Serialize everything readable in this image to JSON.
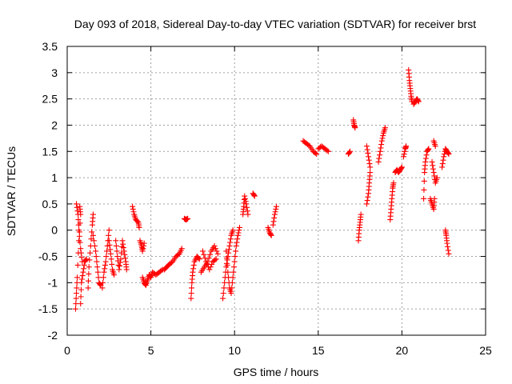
{
  "chart_data": {
    "type": "scatter",
    "title": "Day 093 of 2018, Sidereal Day-to-day VTEC variation (SDTVAR) for receiver brst",
    "xlabel": "GPS time / hours",
    "ylabel": "SDTVAR / TECUs",
    "xlim": [
      0,
      25
    ],
    "ylim": [
      -2,
      3.5
    ],
    "x_ticks": [
      0,
      5,
      10,
      15,
      20,
      25
    ],
    "x_tick_labels": [
      "0",
      "5",
      "10",
      "15",
      "20",
      "25"
    ],
    "y_ticks": [
      -2,
      -1.5,
      -1,
      -0.5,
      0,
      0.5,
      1,
      1.5,
      2,
      2.5,
      3,
      3.5
    ],
    "y_tick_labels": [
      "-2",
      "-1.5",
      "-1",
      "-0.5",
      "0",
      "0.5",
      "1",
      "1.5",
      "2",
      "2.5",
      "3",
      "3.5"
    ],
    "grid": true,
    "marker": "plus",
    "color": "#ff0000",
    "series": [
      {
        "name": "SDTVAR",
        "segments": [
          [
            [
              0.5,
              -1.5
            ],
            [
              0.55,
              -1.2
            ],
            [
              0.6,
              -0.9
            ],
            [
              0.7,
              -0.2
            ],
            [
              0.8,
              0.3
            ],
            [
              0.75,
              0.45
            ]
          ],
          [
            [
              0.55,
              0.5
            ],
            [
              0.65,
              0.3
            ],
            [
              0.7,
              0.0
            ],
            [
              0.8,
              -0.35
            ],
            [
              0.9,
              -0.6
            ]
          ],
          [
            [
              0.8,
              -1.4
            ],
            [
              0.85,
              -1.0
            ],
            [
              0.95,
              -0.8
            ],
            [
              1.05,
              -0.6
            ],
            [
              1.15,
              -0.55
            ]
          ],
          [
            [
              1.25,
              -1.1
            ],
            [
              1.3,
              -0.7
            ],
            [
              1.4,
              -0.3
            ],
            [
              1.5,
              0.1
            ],
            [
              1.55,
              0.3
            ]
          ],
          [
            [
              1.55,
              -0.1
            ],
            [
              1.7,
              -0.4
            ],
            [
              1.8,
              -0.7
            ],
            [
              1.9,
              -1.0
            ],
            [
              2.0,
              -1.05
            ]
          ],
          [
            [
              2.1,
              -1.1
            ],
            [
              2.2,
              -0.8
            ],
            [
              2.3,
              -0.6
            ],
            [
              2.4,
              -0.3
            ],
            [
              2.5,
              0.0
            ]
          ],
          [
            [
              2.5,
              -0.2
            ],
            [
              2.6,
              -0.45
            ],
            [
              2.7,
              -0.75
            ],
            [
              2.8,
              -0.85
            ]
          ],
          [
            [
              2.9,
              -0.2
            ],
            [
              3.0,
              -0.5
            ],
            [
              3.1,
              -0.75
            ],
            [
              3.2,
              -0.55
            ],
            [
              3.3,
              -0.2
            ],
            [
              3.4,
              -0.4
            ],
            [
              3.5,
              -0.6
            ],
            [
              3.55,
              -0.75
            ]
          ],
          [
            [
              3.9,
              0.45
            ],
            [
              4.0,
              0.3
            ],
            [
              4.1,
              0.2
            ],
            [
              4.25,
              0.15
            ],
            [
              4.3,
              0.05
            ]
          ],
          [
            [
              4.35,
              -0.2
            ],
            [
              4.45,
              -0.3
            ],
            [
              4.5,
              -0.4
            ],
            [
              4.6,
              -0.25
            ]
          ],
          [
            [
              4.5,
              -0.9
            ],
            [
              4.6,
              -1.0
            ],
            [
              4.7,
              -1.05
            ],
            [
              4.8,
              -0.95
            ],
            [
              4.9,
              -0.85
            ],
            [
              5.0,
              -0.9
            ],
            [
              5.1,
              -0.8
            ],
            [
              5.3,
              -0.85
            ],
            [
              5.5,
              -0.8
            ],
            [
              5.7,
              -0.75
            ]
          ],
          [
            [
              5.8,
              -0.75
            ],
            [
              5.95,
              -0.7
            ],
            [
              6.1,
              -0.65
            ],
            [
              6.3,
              -0.6
            ],
            [
              6.5,
              -0.5
            ],
            [
              6.7,
              -0.45
            ],
            [
              6.85,
              -0.35
            ]
          ],
          [
            [
              7.0,
              0.22
            ],
            [
              7.1,
              0.2
            ],
            [
              7.2,
              0.22
            ]
          ],
          [
            [
              7.4,
              -1.3
            ],
            [
              7.45,
              -1.0
            ],
            [
              7.5,
              -0.8
            ],
            [
              7.6,
              -0.6
            ],
            [
              7.75,
              -0.5
            ],
            [
              7.9,
              -0.55
            ]
          ],
          [
            [
              8.0,
              -0.8
            ],
            [
              8.2,
              -0.7
            ],
            [
              8.4,
              -0.6
            ],
            [
              8.6,
              -0.4
            ],
            [
              8.8,
              -0.3
            ],
            [
              9.0,
              -0.45
            ]
          ],
          [
            [
              8.1,
              -0.4
            ],
            [
              8.3,
              -0.6
            ],
            [
              8.5,
              -0.75
            ],
            [
              8.7,
              -0.6
            ],
            [
              8.9,
              -0.55
            ]
          ],
          [
            [
              9.3,
              -1.3
            ],
            [
              9.4,
              -1.0
            ],
            [
              9.5,
              -0.7
            ],
            [
              9.6,
              -0.5
            ],
            [
              9.7,
              -0.3
            ],
            [
              9.8,
              -0.1
            ],
            [
              9.9,
              0.0
            ]
          ],
          [
            [
              9.5,
              -0.4
            ],
            [
              9.6,
              -0.8
            ],
            [
              9.7,
              -1.1
            ],
            [
              9.8,
              -1.2
            ],
            [
              9.9,
              -0.9
            ],
            [
              10.0,
              -0.6
            ],
            [
              10.1,
              -0.3
            ],
            [
              10.2,
              -0.1
            ],
            [
              10.3,
              0.05
            ]
          ],
          [
            [
              10.5,
              0.3
            ],
            [
              10.55,
              0.45
            ],
            [
              10.6,
              0.65
            ],
            [
              10.7,
              0.5
            ],
            [
              10.8,
              0.3
            ]
          ],
          [
            [
              11.1,
              0.7
            ],
            [
              11.2,
              0.65
            ]
          ],
          [
            [
              12.0,
              0.05
            ],
            [
              12.1,
              -0.05
            ],
            [
              12.2,
              -0.1
            ]
          ],
          [
            [
              12.3,
              0.1
            ],
            [
              12.4,
              0.3
            ],
            [
              12.5,
              0.45
            ]
          ],
          [
            [
              14.1,
              1.7
            ],
            [
              14.3,
              1.65
            ],
            [
              14.5,
              1.6
            ],
            [
              14.7,
              1.5
            ],
            [
              14.9,
              1.45
            ]
          ],
          [
            [
              15.0,
              1.55
            ],
            [
              15.2,
              1.6
            ],
            [
              15.4,
              1.55
            ],
            [
              15.6,
              1.5
            ]
          ],
          [
            [
              16.8,
              1.45
            ],
            [
              16.9,
              1.5
            ]
          ],
          [
            [
              17.1,
              2.1
            ],
            [
              17.15,
              2.0
            ],
            [
              17.2,
              1.95
            ]
          ],
          [
            [
              17.4,
              -0.2
            ],
            [
              17.45,
              0.0
            ],
            [
              17.5,
              0.15
            ],
            [
              17.55,
              0.3
            ]
          ],
          [
            [
              17.9,
              0.5
            ],
            [
              18.0,
              0.7
            ],
            [
              18.05,
              0.9
            ],
            [
              18.1,
              1.1
            ]
          ],
          [
            [
              17.9,
              1.6
            ],
            [
              18.0,
              1.4
            ],
            [
              18.1,
              1.2
            ]
          ],
          [
            [
              18.6,
              1.3
            ],
            [
              18.7,
              1.5
            ],
            [
              18.8,
              1.7
            ],
            [
              18.9,
              1.85
            ],
            [
              19.0,
              1.95
            ]
          ],
          [
            [
              19.3,
              0.2
            ],
            [
              19.35,
              0.4
            ],
            [
              19.4,
              0.6
            ],
            [
              19.45,
              0.8
            ],
            [
              19.5,
              0.9
            ]
          ],
          [
            [
              19.6,
              1.1
            ],
            [
              19.7,
              1.15
            ],
            [
              19.8,
              1.1
            ],
            [
              19.9,
              1.15
            ],
            [
              20.0,
              1.2
            ]
          ],
          [
            [
              20.1,
              1.4
            ],
            [
              20.2,
              1.55
            ],
            [
              20.25,
              1.6
            ]
          ],
          [
            [
              20.4,
              3.05
            ],
            [
              20.45,
              2.85
            ],
            [
              20.5,
              2.7
            ],
            [
              20.55,
              2.55
            ],
            [
              20.6,
              2.45
            ]
          ],
          [
            [
              20.7,
              2.4
            ],
            [
              20.8,
              2.45
            ],
            [
              20.9,
              2.5
            ],
            [
              21.0,
              2.45
            ]
          ],
          [
            [
              21.3,
              0.6
            ],
            [
              21.35,
              1.1
            ],
            [
              21.4,
              1.3
            ],
            [
              21.5,
              1.5
            ],
            [
              21.6,
              1.55
            ]
          ],
          [
            [
              21.7,
              0.6
            ],
            [
              21.8,
              0.5
            ],
            [
              21.9,
              0.4
            ],
            [
              21.95,
              0.6
            ]
          ],
          [
            [
              21.8,
              1.3
            ],
            [
              21.9,
              1.1
            ],
            [
              22.0,
              0.9
            ],
            [
              22.1,
              1.0
            ]
          ],
          [
            [
              21.9,
              1.7
            ],
            [
              22.0,
              1.6
            ]
          ],
          [
            [
              22.4,
              1.2
            ],
            [
              22.5,
              1.4
            ],
            [
              22.6,
              1.55
            ],
            [
              22.7,
              1.5
            ],
            [
              22.8,
              1.45
            ]
          ],
          [
            [
              22.6,
              0.0
            ],
            [
              22.65,
              -0.1
            ],
            [
              22.7,
              -0.25
            ],
            [
              22.8,
              -0.45
            ]
          ]
        ]
      }
    ]
  }
}
